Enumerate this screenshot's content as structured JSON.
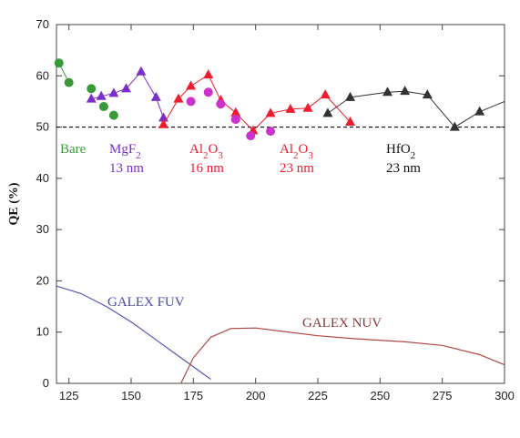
{
  "chart_data": {
    "type": "scatter",
    "ylabel": "QE (%)",
    "xlim": [
      120,
      300
    ],
    "ylim": [
      0,
      70
    ],
    "xticks": [
      125,
      150,
      175,
      200,
      225,
      250,
      275,
      300
    ],
    "yticks": [
      0,
      10,
      20,
      30,
      40,
      50,
      60,
      70
    ],
    "reference_line": {
      "y": 50,
      "style": "dashed",
      "color": "#000000"
    },
    "series": [
      {
        "name": "Bare",
        "marker": "circle",
        "color": "#3a9a3a",
        "connected": true,
        "points": [
          [
            121,
            62.5
          ],
          [
            125,
            58.7
          ]
        ]
      },
      {
        "name": "Bare",
        "marker": "circle",
        "color": "#3a9a3a",
        "connected": false,
        "points": [
          [
            134,
            57.5
          ],
          [
            139,
            54
          ],
          [
            143,
            52.3
          ]
        ]
      },
      {
        "name": "MgF2 13 nm",
        "marker": "triangle",
        "color": "#7b2fc9",
        "connected": true,
        "points": [
          [
            134,
            55.5
          ],
          [
            138,
            56
          ],
          [
            143,
            56.6
          ],
          [
            148,
            57.5
          ],
          [
            154,
            60.8
          ],
          [
            160,
            55.8
          ],
          [
            163,
            51.8
          ]
        ]
      },
      {
        "name": "Al2O3 16 nm",
        "marker": "triangle",
        "color": "#ee1c2e",
        "connected": true,
        "points": [
          [
            163,
            50.5
          ],
          [
            169,
            55.5
          ],
          [
            174,
            58
          ],
          [
            181,
            60.2
          ],
          [
            186,
            55.2
          ],
          [
            192,
            52.8
          ],
          [
            199,
            49.3
          ],
          [
            206,
            52.7
          ],
          [
            214,
            53.5
          ],
          [
            221,
            53.7
          ],
          [
            228,
            56.3
          ],
          [
            238,
            51
          ]
        ]
      },
      {
        "name": "Al2O3 16 nm",
        "marker": "circle",
        "color": "#cc33cc",
        "connected": false,
        "points": [
          [
            174,
            55
          ],
          [
            181,
            56.8
          ],
          [
            186,
            54.5
          ],
          [
            192,
            51.5
          ],
          [
            198,
            48.3
          ],
          [
            206,
            49.2
          ]
        ]
      },
      {
        "name": "HfO2 23 nm",
        "marker": "triangle",
        "color": "#333333",
        "connected": true,
        "points": [
          [
            229,
            52.7
          ],
          [
            238,
            55.8
          ],
          [
            253,
            56.8
          ],
          [
            260,
            57
          ],
          [
            269,
            56.3
          ],
          [
            280,
            50
          ],
          [
            290,
            53
          ]
        ]
      },
      {
        "name": "HfO2 23 nm",
        "marker": "none",
        "color": "#333333",
        "connected": true,
        "points": [
          [
            290,
            53
          ],
          [
            300,
            55
          ]
        ]
      }
    ],
    "curves": [
      {
        "name": "GALEX FUV",
        "color": "#5555b8",
        "points": [
          [
            120,
            19
          ],
          [
            130,
            17.5
          ],
          [
            140,
            15
          ],
          [
            150,
            12
          ],
          [
            160,
            8.5
          ],
          [
            170,
            5
          ],
          [
            180,
            1.5
          ],
          [
            182,
            0.8
          ]
        ]
      },
      {
        "name": "GALEX NUV",
        "color": "#b04848",
        "points": [
          [
            170,
            0
          ],
          [
            175,
            5
          ],
          [
            182,
            9
          ],
          [
            190,
            10.7
          ],
          [
            200,
            10.8
          ],
          [
            210,
            10.2
          ],
          [
            225,
            9.3
          ],
          [
            240,
            8.7
          ],
          [
            260,
            8.1
          ],
          [
            275,
            7.4
          ],
          [
            290,
            5.6
          ],
          [
            300,
            3.6
          ]
        ]
      }
    ],
    "labels": [
      {
        "id": "bare",
        "text": "Bare",
        "color": "#3a9a3a"
      },
      {
        "id": "mgf2",
        "text": "MgF",
        "sub": "2",
        "line2": "13 nm",
        "color": "#7b2fc9"
      },
      {
        "id": "al16",
        "text": "Al",
        "sub": "2",
        "mid": "O",
        "sub2": "3",
        "line2": "16 nm",
        "color": "#ee1c2e"
      },
      {
        "id": "al23",
        "text": "Al",
        "sub": "2",
        "mid": "O",
        "sub2": "3",
        "line2": "23 nm",
        "color": "#ee1c2e"
      },
      {
        "id": "hfo2",
        "text": "HfO",
        "sub": "2",
        "line2": "23 nm",
        "color": "#111111"
      },
      {
        "id": "fuv",
        "text": "GALEX FUV",
        "color": "#4a4aa8"
      },
      {
        "id": "nuv",
        "text": "GALEX NUV",
        "color": "#8a3a3a"
      }
    ]
  }
}
